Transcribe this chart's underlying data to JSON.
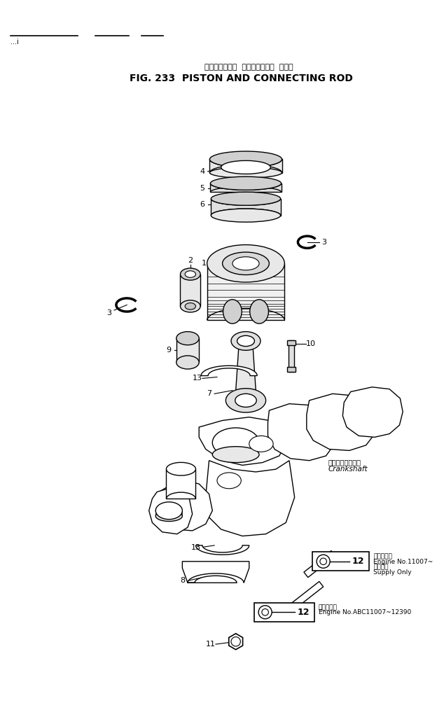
{
  "title_japanese": "ピストンおよび  コネクティング  ロッド",
  "title_english": "FIG. 233  PISTON AND CONNECTING ROD",
  "bg_color": "#ffffff",
  "fig_width": 6.34,
  "fig_height": 10.14,
  "crankshaft_label_jp": "クランクシャフト",
  "crankshaft_label_en": "Crankshaft",
  "box1_text": "12",
  "box1_note_jp": "適用式番号",
  "box1_note_line1": "Engine No.11007~",
  "box1_note_line2": "補備品用",
  "box1_note_line3": "Supply Only",
  "box2_text": "12",
  "box2_note_jp": "適用式番号",
  "box2_note_line1": "Engine No.ABC11007~12390",
  "lc": "black",
  "lw": 1.0
}
